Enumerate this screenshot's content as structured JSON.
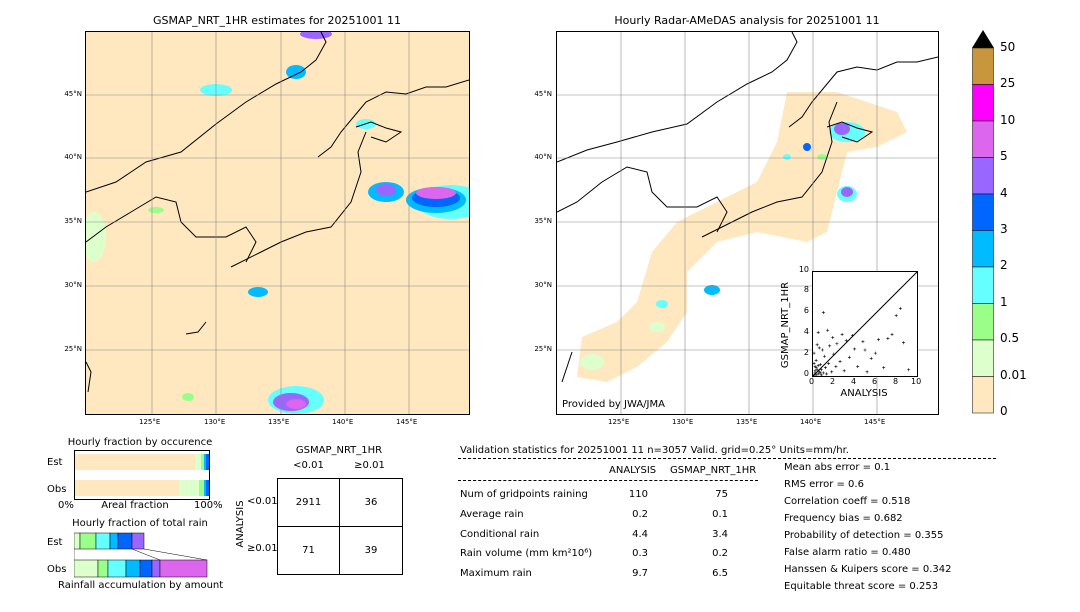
{
  "left_map": {
    "title": "GSMAP_NRT_1HR estimates for 20251001 11",
    "lon_ticks": [
      "125°E",
      "130°E",
      "135°E",
      "140°E",
      "145°E"
    ],
    "lat_ticks": [
      "45°N",
      "40°N",
      "35°N",
      "30°N",
      "25°N"
    ]
  },
  "right_map": {
    "title": "Hourly Radar-AMeDAS analysis for 20251001 11",
    "lon_ticks": [
      "125°E",
      "130°E",
      "135°E",
      "140°E",
      "145°E"
    ],
    "lat_ticks": [
      "45°N",
      "40°N",
      "35°N",
      "30°N",
      "25°N"
    ],
    "credit": "Provided by JWA/JMA"
  },
  "scatter": {
    "xlabel": "ANALYSIS",
    "ylabel": "GSMAP_NRT_1HR",
    "ticks": [
      "0",
      "2",
      "4",
      "6",
      "8",
      "10"
    ]
  },
  "colorbar": {
    "levels": [
      "50",
      "25",
      "10",
      "5",
      "4",
      "3",
      "2",
      "1",
      "0.5",
      "0.01",
      "0"
    ],
    "colors": [
      "#c8963c",
      "#ff00ff",
      "#dd66ee",
      "#9966ff",
      "#0066ff",
      "#00bbff",
      "#66ffff",
      "#99ff88",
      "#ddffcc",
      "#ffe8c0"
    ],
    "over_color": "#000000"
  },
  "fraction_occurrence": {
    "title": "Hourly fraction by occurence",
    "est_label": "Est",
    "obs_label": "Obs",
    "axis_left": "0%",
    "axis_mid": "Areal fraction",
    "axis_right": "100%"
  },
  "fraction_total": {
    "title": "Hourly fraction of total rain",
    "est_label": "Est",
    "obs_label": "Obs",
    "axis_label": "Rainfall accumulation by amount"
  },
  "contingency": {
    "col_title": "GSMAP_NRT_1HR",
    "col_lt": "<0.01",
    "col_ge": "≥0.01",
    "row_title": "ANALYSIS",
    "row_lt": "<0.01",
    "row_ge": "≥0.01",
    "a": "2911",
    "b": "36",
    "c": "71",
    "d": "39"
  },
  "validation": {
    "header": "Validation statistics for 20251001 11  n=3057 Valid. grid=0.25°  Units=mm/hr.",
    "col_analysis": "ANALYSIS",
    "col_gsmap": "GSMAP_NRT_1HR",
    "rows": [
      {
        "label": "Num of gridpoints raining",
        "analysis": "110",
        "gsmap": "75"
      },
      {
        "label": "Average rain",
        "analysis": "0.2",
        "gsmap": "0.1"
      },
      {
        "label": "Conditional rain",
        "analysis": "4.4",
        "gsmap": "3.4"
      },
      {
        "label": "Rain volume (mm km²10⁶)",
        "analysis": "0.3",
        "gsmap": "0.2"
      },
      {
        "label": "Maximum rain",
        "analysis": "9.7",
        "gsmap": "6.5"
      }
    ],
    "scores": [
      "Mean abs error =    0.1",
      "RMS error =    0.6",
      "Correlation coeff =  0.518",
      "Frequency bias =  0.682",
      "Probability of detection =  0.355",
      "False alarm ratio =  0.480",
      "Hanssen & Kuipers score =  0.342",
      "Equitable threat score =  0.253"
    ]
  },
  "chart_data": {
    "type": "scatter",
    "xlabel": "ANALYSIS",
    "ylabel": "GSMAP_NRT_1HR",
    "xlim": [
      0,
      10
    ],
    "ylim": [
      0,
      10
    ],
    "points": [
      [
        0.1,
        0.1
      ],
      [
        0.2,
        0.3
      ],
      [
        0.3,
        0.1
      ],
      [
        0.4,
        0.6
      ],
      [
        0.5,
        0.2
      ],
      [
        0.2,
        0.9
      ],
      [
        0.6,
        0.4
      ],
      [
        0.8,
        0.1
      ],
      [
        0.3,
        1.5
      ],
      [
        0.1,
        2.2
      ],
      [
        0.7,
        1.1
      ],
      [
        1.0,
        0.3
      ],
      [
        1.2,
        0.8
      ],
      [
        0.9,
        2.5
      ],
      [
        0.4,
        3.0
      ],
      [
        1.5,
        1.2
      ],
      [
        1.8,
        0.4
      ],
      [
        2.0,
        2.1
      ],
      [
        0.5,
        4.2
      ],
      [
        1.0,
        6.1
      ],
      [
        2.3,
        3.1
      ],
      [
        2.6,
        1.4
      ],
      [
        3.0,
        0.5
      ],
      [
        3.2,
        3.4
      ],
      [
        2.8,
        4.0
      ],
      [
        3.5,
        1.8
      ],
      [
        4.0,
        2.6
      ],
      [
        4.3,
        0.9
      ],
      [
        4.8,
        3.3
      ],
      [
        5.2,
        0.4
      ],
      [
        5.6,
        1.7
      ],
      [
        6.0,
        2.2
      ],
      [
        6.3,
        3.5
      ],
      [
        6.8,
        0.8
      ],
      [
        7.2,
        3.6
      ],
      [
        7.6,
        4.0
      ],
      [
        8.0,
        5.8
      ],
      [
        8.4,
        6.5
      ],
      [
        8.7,
        3.2
      ],
      [
        9.2,
        0.6
      ],
      [
        1.4,
        4.4
      ],
      [
        1.9,
        3.7
      ],
      [
        2.2,
        0.9
      ],
      [
        0.6,
        2.7
      ],
      [
        1.1,
        1.9
      ],
      [
        0.2,
        0.5
      ],
      [
        0.5,
        1.0
      ],
      [
        0.8,
        0.6
      ],
      [
        1.3,
        0.2
      ],
      [
        1.6,
        2.9
      ],
      [
        3.8,
        3.9
      ],
      [
        5.0,
        2.5
      ],
      [
        0.1,
        1.2
      ],
      [
        0.3,
        0.8
      ],
      [
        0.7,
        0.3
      ]
    ]
  }
}
